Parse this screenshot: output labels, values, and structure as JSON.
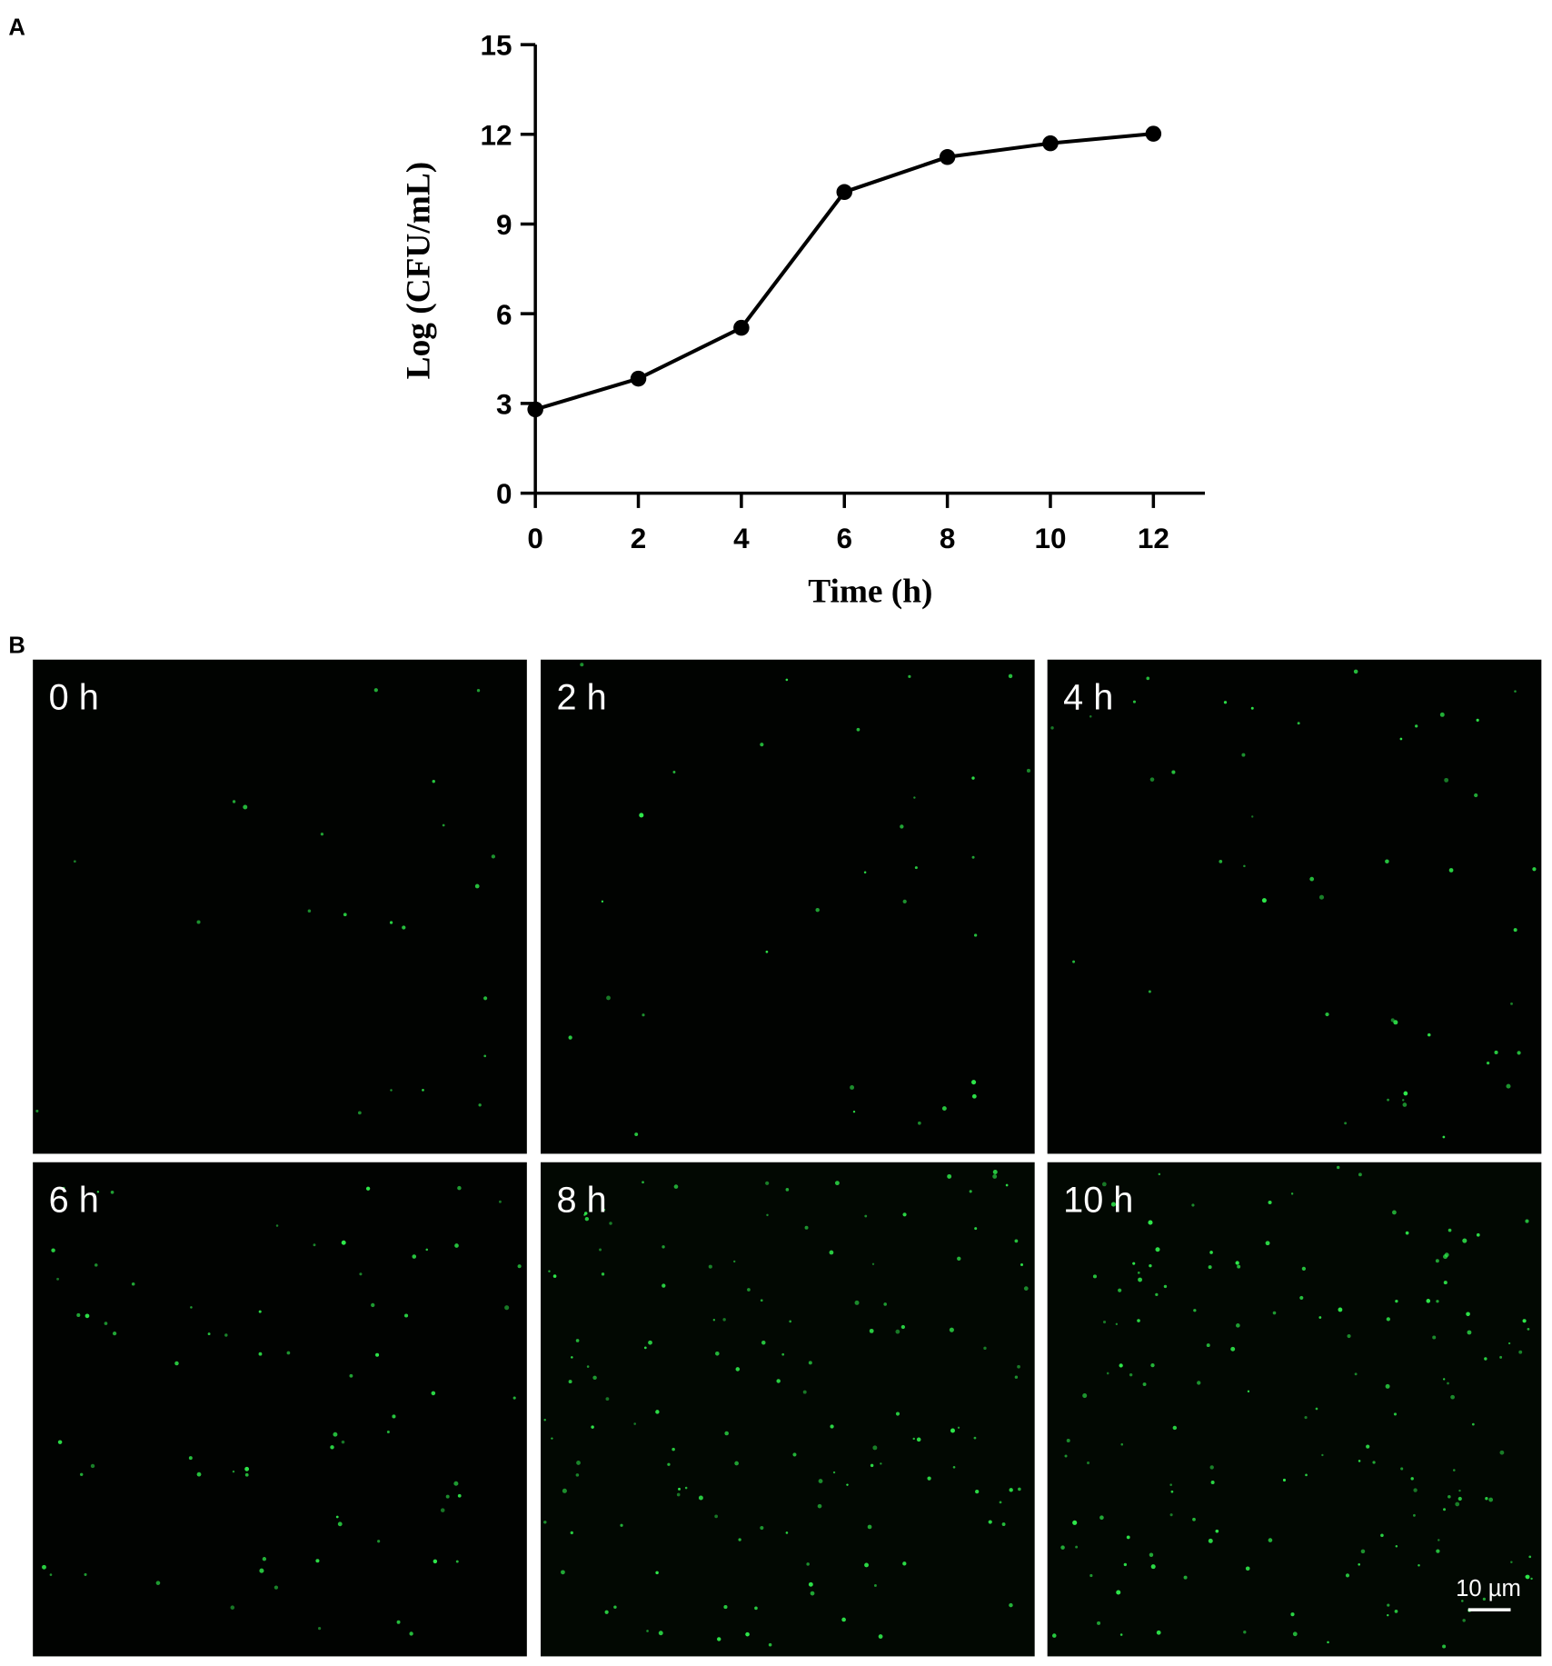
{
  "panel_a_label": "A",
  "chart_data": {
    "type": "line",
    "x_label": "Time (h)",
    "y_label": "Log (CFU/mL)",
    "x": [
      0,
      2,
      4,
      6,
      8,
      10,
      12
    ],
    "series": [
      {
        "color": "#000000",
        "values": [
          2.8,
          3.83,
          5.53,
          10.07,
          11.24,
          11.7,
          12.02
        ]
      }
    ],
    "xlim": [
      0,
      13
    ],
    "xticks": [
      0,
      2,
      4,
      6,
      8,
      10,
      12
    ],
    "ylim": [
      0,
      15
    ],
    "yticks": [
      0,
      3,
      6,
      9,
      12,
      15
    ]
  },
  "panel_b": {
    "label": "B",
    "images": [
      {
        "label": "0 h"
      },
      {
        "label": "2 h"
      },
      {
        "label": "4 h"
      },
      {
        "label": "6 h"
      },
      {
        "label": "8 h"
      },
      {
        "label": "10 h"
      }
    ],
    "scale_bar": "10 µm"
  }
}
